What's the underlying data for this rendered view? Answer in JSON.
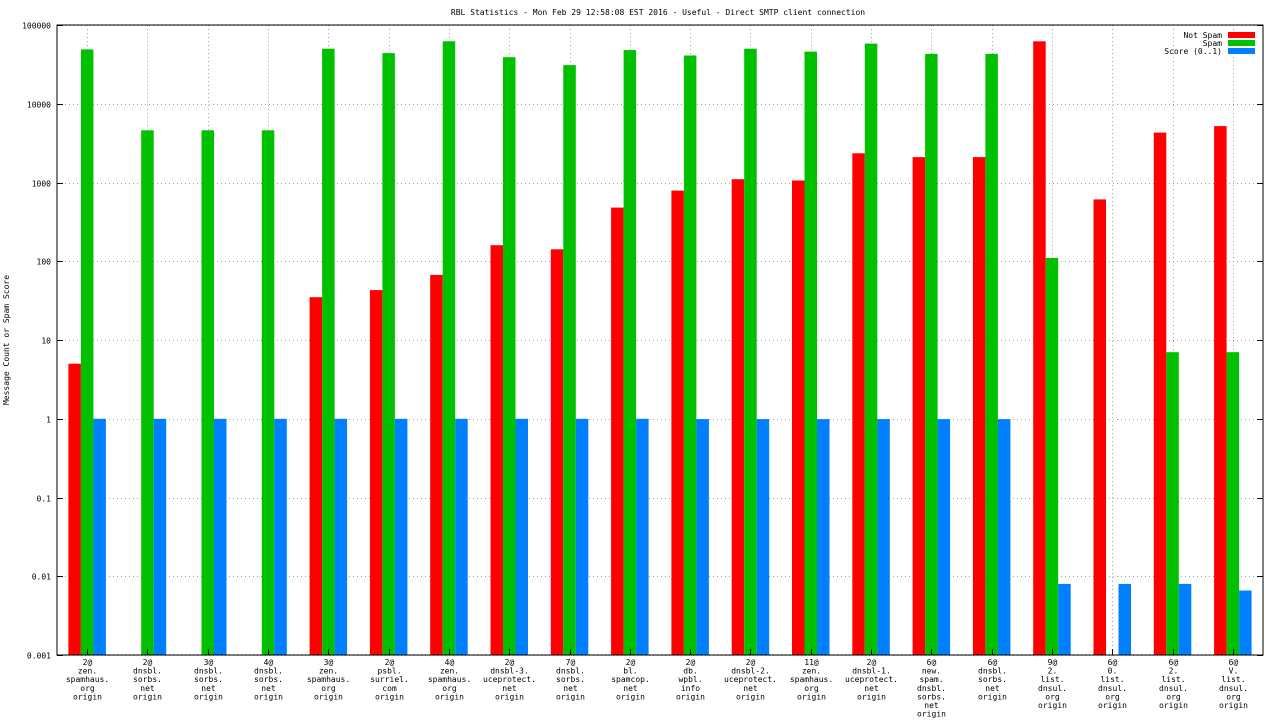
{
  "chart_data": {
    "type": "bar",
    "title": "RBL Statistics - Mon Feb 29 12:58:08 EST 2016 - Useful - Direct SMTP client connection",
    "xlabel": "",
    "ylabel": "Message Count or Spam Score",
    "yscale": "log",
    "ylim": [
      0.001,
      100000
    ],
    "yticks": [
      {
        "value": 0.001,
        "label": "0.001"
      },
      {
        "value": 0.01,
        "label": "0.01"
      },
      {
        "value": 0.1,
        "label": "0.1"
      },
      {
        "value": 1,
        "label": "1"
      },
      {
        "value": 10,
        "label": "10"
      },
      {
        "value": 100,
        "label": "100"
      },
      {
        "value": 1000,
        "label": "1000"
      },
      {
        "value": 10000,
        "label": "10000"
      },
      {
        "value": 100000,
        "label": "100000"
      }
    ],
    "grid": true,
    "legend_position": "top-right",
    "categories": [
      [
        "2@",
        "zen.",
        "spamhaus.",
        "org",
        "origin"
      ],
      [
        "2@",
        "dnsbl.",
        "sorbs.",
        "net",
        "origin"
      ],
      [
        "3@",
        "dnsbl.",
        "sorbs.",
        "net",
        "origin"
      ],
      [
        "4@",
        "dnsbl.",
        "sorbs.",
        "net",
        "origin"
      ],
      [
        "3@",
        "zen.",
        "spamhaus.",
        "org",
        "origin"
      ],
      [
        "2@",
        "psbl.",
        "surriel.",
        "com",
        "origin"
      ],
      [
        "4@",
        "zen.",
        "spamhaus.",
        "org",
        "origin"
      ],
      [
        "2@",
        "dnsbl-3.",
        "uceprotect.",
        "net",
        "origin"
      ],
      [
        "7@",
        "dnsbl.",
        "sorbs.",
        "net",
        "origin"
      ],
      [
        "2@",
        "bl.",
        "spamcop.",
        "net",
        "origin"
      ],
      [
        "2@",
        "db.",
        "wpbl.",
        "info",
        "origin"
      ],
      [
        "2@",
        "dnsbl-2.",
        "uceprotect.",
        "net",
        "origin"
      ],
      [
        "11@",
        "zen.",
        "spamhaus.",
        "org",
        "origin"
      ],
      [
        "2@",
        "dnsbl-1.",
        "uceprotect.",
        "net",
        "origin"
      ],
      [
        "6@",
        "new.",
        "spam.",
        "dnsbl.",
        "sorbs.",
        "net",
        "origin"
      ],
      [
        "6@",
        "dnsbl.",
        "sorbs.",
        "net",
        "origin"
      ],
      [
        "9@",
        "2.",
        "list.",
        "dnsul.",
        "org",
        "origin"
      ],
      [
        "6@",
        "0.",
        "list.",
        "dnsul.",
        "org",
        "origin"
      ],
      [
        "6@",
        "2.",
        "list.",
        "dnsul.",
        "org",
        "origin"
      ],
      [
        "6@",
        "V.",
        "list.",
        "dnsul.",
        "org",
        "origin"
      ]
    ],
    "series": [
      {
        "name": "Not Spam",
        "color": "#ff0000",
        "values": [
          5,
          null,
          null,
          null,
          35,
          43,
          67,
          160,
          142,
          480,
          790,
          1100,
          1060,
          2350,
          2100,
          2100,
          62000,
          610,
          4300,
          5200
        ]
      },
      {
        "name": "Spam",
        "color": "#00c000",
        "values": [
          49000,
          4600,
          4600,
          4600,
          50000,
          44000,
          62000,
          39000,
          31000,
          48000,
          41000,
          50000,
          46000,
          58000,
          43000,
          43000,
          110,
          null,
          7,
          7
        ]
      },
      {
        "name": "Score (0..1)",
        "color": "#0080ff",
        "values": [
          1,
          1,
          1,
          1,
          1,
          1,
          1,
          1,
          1,
          1,
          0.99,
          0.99,
          0.99,
          0.99,
          0.99,
          0.99,
          0.008,
          0.008,
          0.008,
          0.0066
        ]
      }
    ]
  }
}
